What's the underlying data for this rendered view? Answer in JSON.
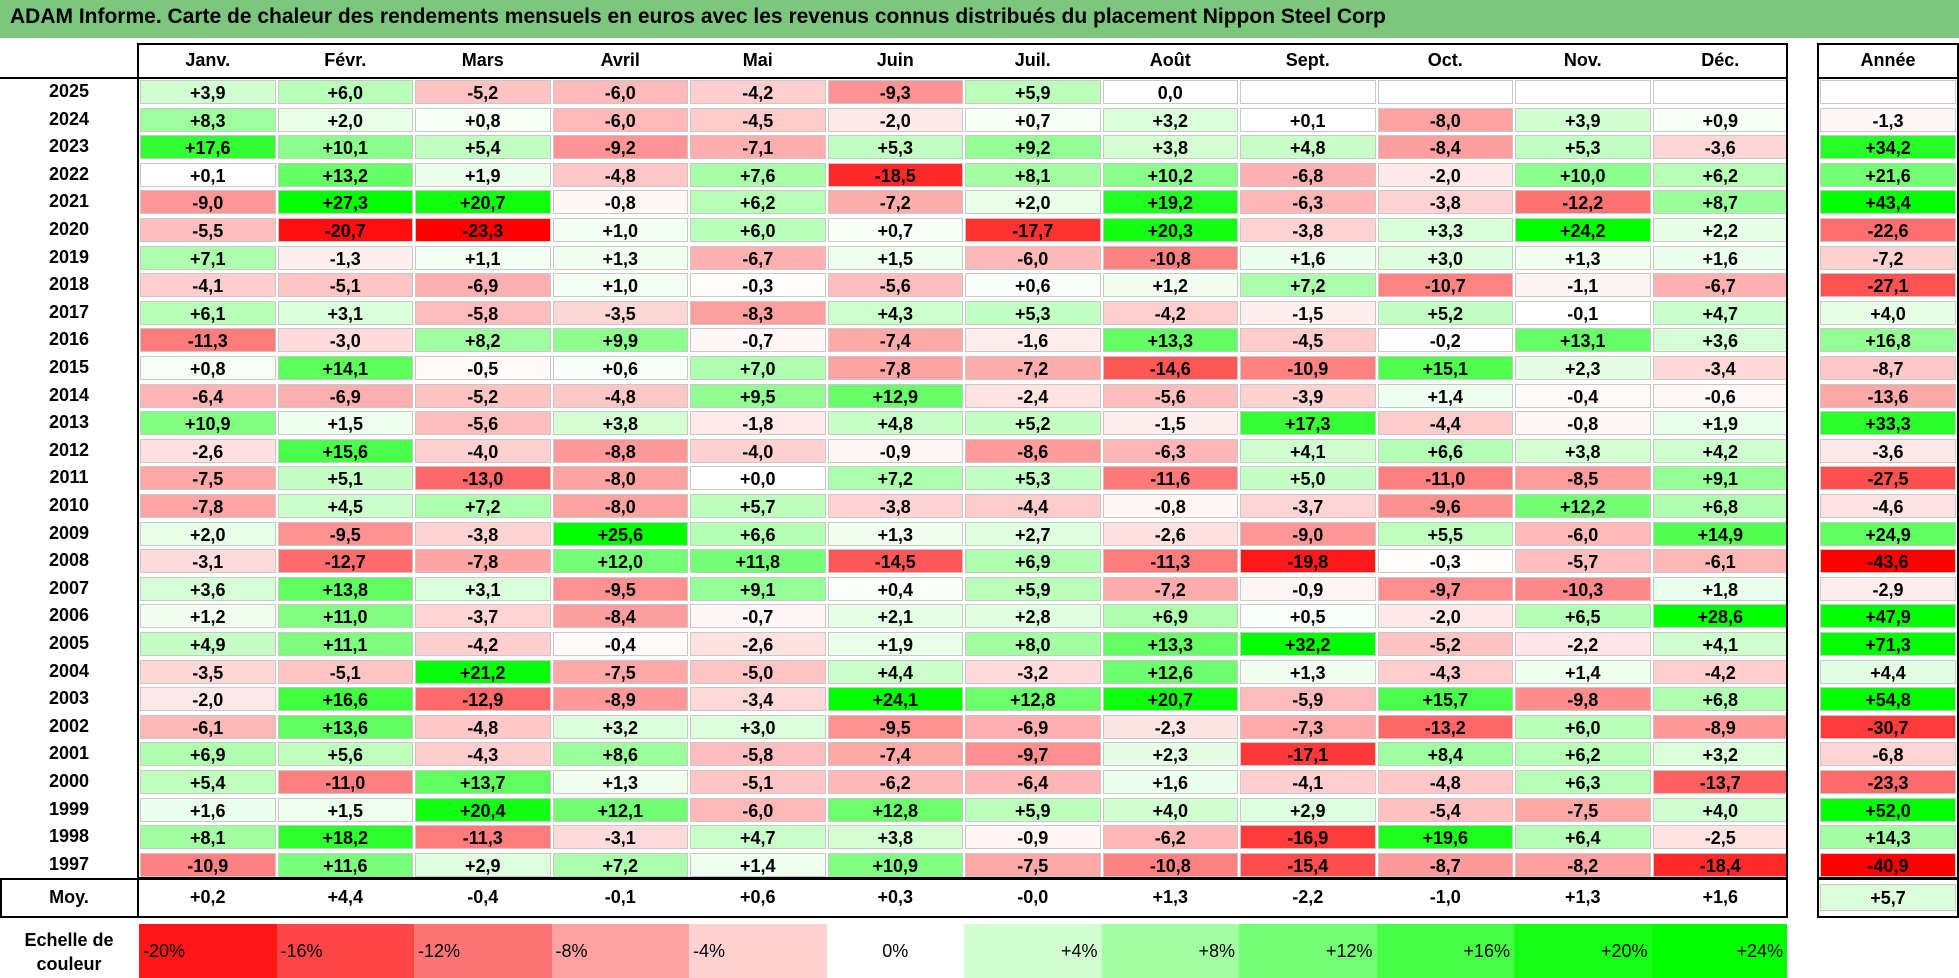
{
  "title": "ADAM Informe. Carte de chaleur des rendements mensuels en euros avec les revenus connus distribués du placement Nippon Steel Corp",
  "columns": [
    "Janv.",
    "Févr.",
    "Mars",
    "Avril",
    "Mai",
    "Juin",
    "Juil.",
    "Août",
    "Sept.",
    "Oct.",
    "Nov.",
    "Déc."
  ],
  "year_column": "Année",
  "avg_label": "Moy.",
  "scale_label": "Echelle de couleur",
  "colors": {
    "negative": "#ff0000",
    "neutral": "#ffffff",
    "positive": "#00ff00",
    "title_bg": "#7dc67d"
  },
  "scale": [
    "-20%",
    "-16%",
    "-12%",
    "-8%",
    "-4%",
    "0%",
    "+4%",
    "+8%",
    "+12%",
    "+16%",
    "+20%",
    "+24%"
  ],
  "chart_data": {
    "type": "heatmap",
    "title": "ADAM Informe. Carte de chaleur des rendements mensuels en euros avec les revenus connus distribués du placement Nippon Steel Corp",
    "x": [
      "Janv.",
      "Févr.",
      "Mars",
      "Avril",
      "Mai",
      "Juin",
      "Juil.",
      "Août",
      "Sept.",
      "Oct.",
      "Nov.",
      "Déc."
    ],
    "rows": [
      {
        "year": "2025",
        "values": [
          "+3,9",
          "+6,0",
          "-5,2",
          "-6,0",
          "-4,2",
          "-9,3",
          "+5,9",
          "0,0",
          "",
          "",
          "",
          ""
        ],
        "annual": ""
      },
      {
        "year": "2024",
        "values": [
          "+8,3",
          "+2,0",
          "+0,8",
          "-6,0",
          "-4,5",
          "-2,0",
          "+0,7",
          "+3,2",
          "+0,1",
          "-8,0",
          "+3,9",
          "+0,9"
        ],
        "annual": "-1,3"
      },
      {
        "year": "2023",
        "values": [
          "+17,6",
          "+10,1",
          "+5,4",
          "-9,2",
          "-7,1",
          "+5,3",
          "+9,2",
          "+3,8",
          "+4,8",
          "-8,4",
          "+5,3",
          "-3,6"
        ],
        "annual": "+34,2"
      },
      {
        "year": "2022",
        "values": [
          "+0,1",
          "+13,2",
          "+1,9",
          "-4,8",
          "+7,6",
          "-18,5",
          "+8,1",
          "+10,2",
          "-6,8",
          "-2,0",
          "+10,0",
          "+6,2"
        ],
        "annual": "+21,6"
      },
      {
        "year": "2021",
        "values": [
          "-9,0",
          "+27,3",
          "+20,7",
          "-0,8",
          "+6,2",
          "-7,2",
          "+2,0",
          "+19,2",
          "-6,3",
          "-3,8",
          "-12,2",
          "+8,7"
        ],
        "annual": "+43,4"
      },
      {
        "year": "2020",
        "values": [
          "-5,5",
          "-20,7",
          "-23,3",
          "+1,0",
          "+6,0",
          "+0,7",
          "-17,7",
          "+20,3",
          "-3,8",
          "+3,3",
          "+24,2",
          "+2,2"
        ],
        "annual": "-22,6"
      },
      {
        "year": "2019",
        "values": [
          "+7,1",
          "-1,3",
          "+1,1",
          "+1,3",
          "-6,7",
          "+1,5",
          "-6,0",
          "-10,8",
          "+1,6",
          "+3,0",
          "+1,3",
          "+1,6"
        ],
        "annual": "-7,2"
      },
      {
        "year": "2018",
        "values": [
          "-4,1",
          "-5,1",
          "-6,9",
          "+1,0",
          "-0,3",
          "-5,6",
          "+0,6",
          "+1,2",
          "+7,2",
          "-10,7",
          "-1,1",
          "-6,7"
        ],
        "annual": "-27,1"
      },
      {
        "year": "2017",
        "values": [
          "+6,1",
          "+3,1",
          "-5,8",
          "-3,5",
          "-8,3",
          "+4,3",
          "+5,3",
          "-4,2",
          "-1,5",
          "+5,2",
          "-0,1",
          "+4,7"
        ],
        "annual": "+4,0"
      },
      {
        "year": "2016",
        "values": [
          "-11,3",
          "-3,0",
          "+8,2",
          "+9,9",
          "-0,7",
          "-7,4",
          "-1,6",
          "+13,3",
          "-4,5",
          "-0,2",
          "+13,1",
          "+3,6"
        ],
        "annual": "+16,8"
      },
      {
        "year": "2015",
        "values": [
          "+0,8",
          "+14,1",
          "-0,5",
          "+0,6",
          "+7,0",
          "-7,8",
          "-7,2",
          "-14,6",
          "-10,9",
          "+15,1",
          "+2,3",
          "-3,4"
        ],
        "annual": "-8,7"
      },
      {
        "year": "2014",
        "values": [
          "-6,4",
          "-6,9",
          "-5,2",
          "-4,8",
          "+9,5",
          "+12,9",
          "-2,4",
          "-5,6",
          "-3,9",
          "+1,4",
          "-0,4",
          "-0,6"
        ],
        "annual": "-13,6"
      },
      {
        "year": "2013",
        "values": [
          "+10,9",
          "+1,5",
          "-5,6",
          "+3,8",
          "-1,8",
          "+4,8",
          "+5,2",
          "-1,5",
          "+17,3",
          "-4,4",
          "-0,8",
          "+1,9"
        ],
        "annual": "+33,3"
      },
      {
        "year": "2012",
        "values": [
          "-2,6",
          "+15,6",
          "-4,0",
          "-8,8",
          "-4,0",
          "-0,9",
          "-8,6",
          "-6,3",
          "+4,1",
          "+6,6",
          "+3,8",
          "+4,2"
        ],
        "annual": "-3,6"
      },
      {
        "year": "2011",
        "values": [
          "-7,5",
          "+5,1",
          "-13,0",
          "-8,0",
          "+0,0",
          "+7,2",
          "+5,3",
          "-11,6",
          "+5,0",
          "-11,0",
          "-8,5",
          "+9,1"
        ],
        "annual": "-27,5"
      },
      {
        "year": "2010",
        "values": [
          "-7,8",
          "+4,5",
          "+7,2",
          "-8,0",
          "+5,7",
          "-3,8",
          "-4,4",
          "-0,8",
          "-3,7",
          "-9,6",
          "+12,2",
          "+6,8"
        ],
        "annual": "-4,6"
      },
      {
        "year": "2009",
        "values": [
          "+2,0",
          "-9,5",
          "-3,8",
          "+25,6",
          "+6,6",
          "+1,3",
          "+2,7",
          "-2,6",
          "-9,0",
          "+5,5",
          "-6,0",
          "+14,9"
        ],
        "annual": "+24,9"
      },
      {
        "year": "2008",
        "values": [
          "-3,1",
          "-12,7",
          "-7,8",
          "+12,0",
          "+11,8",
          "-14,5",
          "+6,9",
          "-11,3",
          "-19,8",
          "-0,3",
          "-5,7",
          "-6,1"
        ],
        "annual": "-43,6"
      },
      {
        "year": "2007",
        "values": [
          "+3,6",
          "+13,8",
          "+3,1",
          "-9,5",
          "+9,1",
          "+0,4",
          "+5,9",
          "-7,2",
          "-0,9",
          "-9,7",
          "-10,3",
          "+1,8"
        ],
        "annual": "-2,9"
      },
      {
        "year": "2006",
        "values": [
          "+1,2",
          "+11,0",
          "-3,7",
          "-8,4",
          "-0,7",
          "+2,1",
          "+2,8",
          "+6,9",
          "+0,5",
          "-2,0",
          "+6,5",
          "+28,6"
        ],
        "annual": "+47,9"
      },
      {
        "year": "2005",
        "values": [
          "+4,9",
          "+11,1",
          "-4,2",
          "-0,4",
          "-2,6",
          "+1,9",
          "+8,0",
          "+13,3",
          "+32,2",
          "-5,2",
          "-2,2",
          "+4,1"
        ],
        "annual": "+71,3"
      },
      {
        "year": "2004",
        "values": [
          "-3,5",
          "-5,1",
          "+21,2",
          "-7,5",
          "-5,0",
          "+4,4",
          "-3,2",
          "+12,6",
          "+1,3",
          "-4,3",
          "+1,4",
          "-4,2"
        ],
        "annual": "+4,4"
      },
      {
        "year": "2003",
        "values": [
          "-2,0",
          "+16,6",
          "-12,9",
          "-8,9",
          "-3,4",
          "+24,1",
          "+12,8",
          "+20,7",
          "-5,9",
          "+15,7",
          "-9,8",
          "+6,8"
        ],
        "annual": "+54,8"
      },
      {
        "year": "2002",
        "values": [
          "-6,1",
          "+13,6",
          "-4,8",
          "+3,2",
          "+3,0",
          "-9,5",
          "-6,9",
          "-2,3",
          "-7,3",
          "-13,2",
          "+6,0",
          "-8,9"
        ],
        "annual": "-30,7"
      },
      {
        "year": "2001",
        "values": [
          "+6,9",
          "+5,6",
          "-4,3",
          "+8,6",
          "-5,8",
          "-7,4",
          "-9,7",
          "+2,3",
          "-17,1",
          "+8,4",
          "+6,2",
          "+3,2"
        ],
        "annual": "-6,8"
      },
      {
        "year": "2000",
        "values": [
          "+5,4",
          "-11,0",
          "+13,7",
          "+1,3",
          "-5,1",
          "-6,2",
          "-6,4",
          "+1,6",
          "-4,1",
          "-4,8",
          "+6,3",
          "-13,7"
        ],
        "annual": "-23,3"
      },
      {
        "year": "1999",
        "values": [
          "+1,6",
          "+1,5",
          "+20,4",
          "+12,1",
          "-6,0",
          "+12,8",
          "+5,9",
          "+4,0",
          "+2,9",
          "-5,4",
          "-7,5",
          "+4,0"
        ],
        "annual": "+52,0"
      },
      {
        "year": "1998",
        "values": [
          "+8,1",
          "+18,2",
          "-11,3",
          "-3,1",
          "+4,7",
          "+3,8",
          "-0,9",
          "-6,2",
          "-16,9",
          "+19,6",
          "+6,4",
          "-2,5"
        ],
        "annual": "+14,3"
      },
      {
        "year": "1997",
        "values": [
          "-10,9",
          "+11,6",
          "+2,9",
          "+7,2",
          "+1,4",
          "+10,9",
          "-7,5",
          "-10,8",
          "-15,4",
          "-8,7",
          "-8,2",
          "-18,4"
        ],
        "annual": "-40,9"
      }
    ],
    "average": {
      "values": [
        "+0,2",
        "+4,4",
        "-0,4",
        "-0,1",
        "+0,6",
        "+0,3",
        "-0,0",
        "+1,3",
        "-2,2",
        "-1,0",
        "+1,3",
        "+1,6"
      ],
      "annual": "+5,7"
    }
  }
}
